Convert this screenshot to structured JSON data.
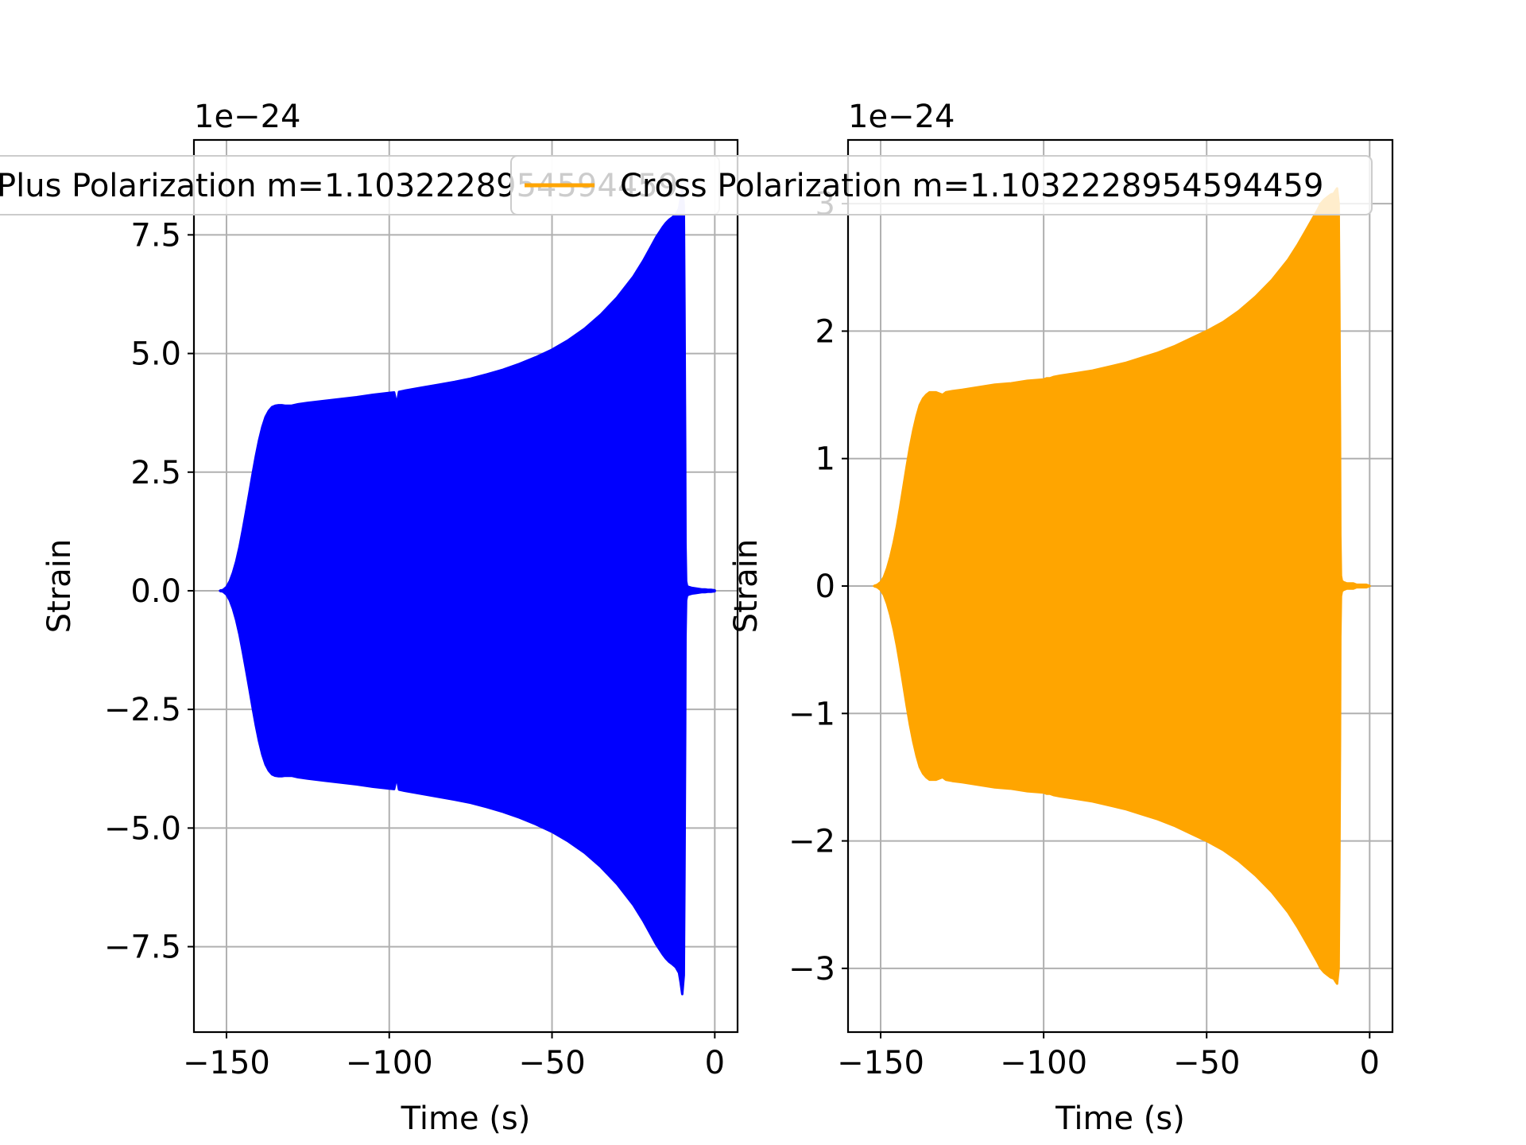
{
  "chart_data": [
    {
      "type": "area",
      "series": [
        {
          "name": "Plus Polarization m=1.1032228954594459",
          "color": "#0000ff",
          "envelope": {
            "x": [
              -152,
              -151,
              -150,
              -149,
              -148,
              -147,
              -146,
              -145,
              -144,
              -143,
              -142,
              -141,
              -140,
              -139,
              -138,
              -137,
              -136,
              -135,
              -134,
              -133,
              -132,
              -131,
              -130,
              -128,
              -125,
              -120,
              -115,
              -110,
              -105,
              -100,
              -98.5,
              -98,
              -97.5,
              -97,
              -95,
              -90,
              -85,
              -80,
              -75,
              -70,
              -65,
              -60,
              -55,
              -50,
              -45,
              -40,
              -35,
              -30,
              -25,
              -22,
              -20,
              -18,
              -16,
              -15,
              -14,
              -13,
              -12,
              -11,
              -10.5,
              -10,
              -9.5,
              -9.3,
              -9.1,
              -9,
              -8.8,
              -8.5,
              -8,
              -7,
              -6,
              -5,
              -4,
              -3,
              -2,
              -1,
              0
            ],
            "upper": [
              0.0,
              0.02,
              0.08,
              0.2,
              0.38,
              0.62,
              0.92,
              1.28,
              1.66,
              2.05,
              2.45,
              2.83,
              3.17,
              3.45,
              3.66,
              3.79,
              3.87,
              3.9,
              3.91,
              3.91,
              3.9,
              3.9,
              3.9,
              3.93,
              3.96,
              4.0,
              4.04,
              4.08,
              4.13,
              4.17,
              4.18,
              4.02,
              4.0,
              4.19,
              4.22,
              4.28,
              4.34,
              4.4,
              4.47,
              4.56,
              4.66,
              4.78,
              4.92,
              5.08,
              5.28,
              5.52,
              5.82,
              6.18,
              6.62,
              6.95,
              7.2,
              7.45,
              7.66,
              7.75,
              7.82,
              7.87,
              7.93,
              8.05,
              8.25,
              8.5,
              8.1,
              6.0,
              3.0,
              1.0,
              0.2,
              0.1,
              0.08,
              0.06,
              0.05,
              0.04,
              0.03,
              0.03,
              0.02,
              0.02,
              0.01
            ],
            "lower": [
              0.0,
              -0.02,
              -0.08,
              -0.2,
              -0.38,
              -0.62,
              -0.92,
              -1.28,
              -1.66,
              -2.05,
              -2.45,
              -2.83,
              -3.17,
              -3.45,
              -3.66,
              -3.79,
              -3.87,
              -3.9,
              -3.91,
              -3.91,
              -3.9,
              -3.9,
              -3.9,
              -3.93,
              -3.96,
              -4.0,
              -4.04,
              -4.08,
              -4.13,
              -4.17,
              -4.18,
              -4.02,
              -4.0,
              -4.19,
              -4.22,
              -4.28,
              -4.34,
              -4.4,
              -4.47,
              -4.56,
              -4.66,
              -4.78,
              -4.92,
              -5.08,
              -5.28,
              -5.52,
              -5.82,
              -6.18,
              -6.62,
              -6.95,
              -7.2,
              -7.45,
              -7.66,
              -7.75,
              -7.82,
              -7.87,
              -7.93,
              -8.05,
              -8.25,
              -8.5,
              -8.1,
              -6.0,
              -3.0,
              -1.0,
              -0.2,
              -0.1,
              -0.08,
              -0.06,
              -0.05,
              -0.04,
              -0.03,
              -0.03,
              -0.02,
              -0.02,
              -0.01
            ]
          }
        }
      ],
      "xlabel": "Time (s)",
      "ylabel": "Strain",
      "offset_text": "1e−24",
      "xlim": [
        -160,
        7
      ],
      "ylim": [
        -9.3,
        9.5
      ],
      "xticks": [
        -150,
        -100,
        -50,
        0
      ],
      "xtick_labels": [
        "−150",
        "−100",
        "−50",
        "0"
      ],
      "yticks": [
        -7.5,
        -5.0,
        -2.5,
        0.0,
        2.5,
        5.0,
        7.5
      ],
      "ytick_labels": [
        "−7.5",
        "−5.0",
        "−2.5",
        "0.0",
        "2.5",
        "5.0",
        "7.5"
      ],
      "grid": true,
      "legend_position": "top-center"
    },
    {
      "type": "area",
      "series": [
        {
          "name": "Cross Polarization m=1.1032228954594459",
          "color": "#ffa500",
          "envelope": {
            "x": [
              -152,
              -151,
              -150,
              -149,
              -148,
              -147,
              -146,
              -145,
              -144,
              -143,
              -142,
              -141,
              -140,
              -139,
              -138,
              -137,
              -136,
              -135,
              -134,
              -133,
              -132,
              -131,
              -130,
              -128,
              -125,
              -120,
              -115,
              -110,
              -105,
              -100,
              -99,
              -98.5,
              -98,
              -97,
              -95,
              -90,
              -85,
              -80,
              -75,
              -70,
              -65,
              -60,
              -55,
              -50,
              -45,
              -40,
              -35,
              -30,
              -25,
              -22,
              -20,
              -18,
              -16,
              -15,
              -14,
              -13,
              -12,
              -11,
              -10.5,
              -10,
              -9.5,
              -9.3,
              -9.1,
              -9,
              -8.8,
              -8.5,
              -8,
              -7,
              -6,
              -5,
              -4,
              -3,
              -2,
              -1,
              0
            ],
            "upper": [
              0.0,
              0.01,
              0.03,
              0.07,
              0.14,
              0.23,
              0.34,
              0.47,
              0.62,
              0.78,
              0.94,
              1.09,
              1.22,
              1.33,
              1.42,
              1.47,
              1.5,
              1.52,
              1.52,
              1.52,
              1.51,
              1.5,
              1.52,
              1.53,
              1.54,
              1.56,
              1.58,
              1.59,
              1.61,
              1.62,
              1.63,
              1.63,
              1.63,
              1.64,
              1.65,
              1.67,
              1.69,
              1.72,
              1.75,
              1.79,
              1.83,
              1.88,
              1.94,
              2.0,
              2.07,
              2.16,
              2.27,
              2.4,
              2.56,
              2.68,
              2.77,
              2.86,
              2.95,
              3.0,
              3.03,
              3.05,
              3.07,
              3.08,
              3.1,
              3.12,
              3.0,
              2.3,
              1.2,
              0.4,
              0.08,
              0.04,
              0.03,
              0.02,
              0.02,
              0.02,
              0.01,
              0.01,
              0.01,
              0.01,
              0.0
            ],
            "lower": [
              0.0,
              -0.01,
              -0.03,
              -0.07,
              -0.14,
              -0.23,
              -0.34,
              -0.47,
              -0.62,
              -0.78,
              -0.94,
              -1.09,
              -1.22,
              -1.33,
              -1.42,
              -1.47,
              -1.5,
              -1.52,
              -1.52,
              -1.52,
              -1.51,
              -1.5,
              -1.52,
              -1.53,
              -1.54,
              -1.56,
              -1.58,
              -1.59,
              -1.61,
              -1.62,
              -1.63,
              -1.63,
              -1.63,
              -1.64,
              -1.65,
              -1.67,
              -1.69,
              -1.72,
              -1.75,
              -1.79,
              -1.83,
              -1.88,
              -1.94,
              -2.0,
              -2.07,
              -2.16,
              -2.27,
              -2.4,
              -2.56,
              -2.68,
              -2.77,
              -2.86,
              -2.95,
              -3.0,
              -3.03,
              -3.05,
              -3.07,
              -3.08,
              -3.1,
              -3.12,
              -3.0,
              -2.3,
              -1.2,
              -0.4,
              -0.08,
              -0.04,
              -0.03,
              -0.02,
              -0.02,
              -0.02,
              -0.01,
              -0.01,
              -0.01,
              -0.01,
              0.0
            ]
          }
        }
      ],
      "xlabel": "Time (s)",
      "ylabel": "Strain",
      "offset_text": "1e−24",
      "xlim": [
        -160,
        7
      ],
      "ylim": [
        -3.5,
        3.5
      ],
      "xticks": [
        -150,
        -100,
        -50,
        0
      ],
      "xtick_labels": [
        "−150",
        "−100",
        "−50",
        "0"
      ],
      "yticks": [
        -3,
        -2,
        -1,
        0,
        1,
        2,
        3
      ],
      "ytick_labels": [
        "−3",
        "−2",
        "−1",
        "0",
        "1",
        "2",
        "3"
      ],
      "grid": true,
      "legend_position": "top-center"
    }
  ]
}
